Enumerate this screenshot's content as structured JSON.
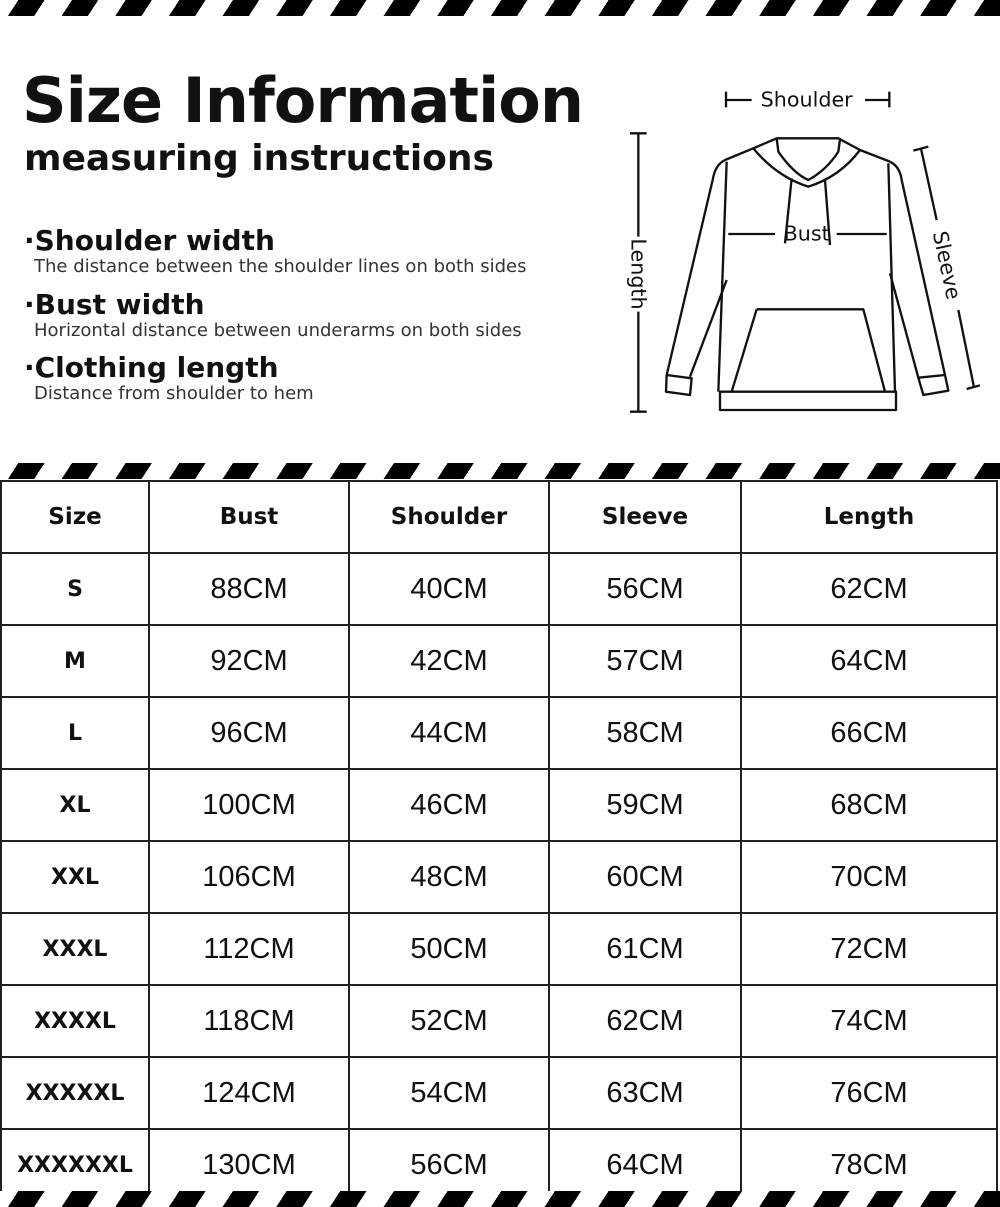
{
  "header": {
    "title": "Size Information",
    "subtitle": "measuring instructions"
  },
  "instructions": [
    {
      "heading": "·Shoulder width",
      "desc": "The distance between the shoulder lines on both sides"
    },
    {
      "heading": "·Bust width",
      "desc": "Horizontal distance between underarms on both sides"
    },
    {
      "heading": "·Clothing length",
      "desc": "Distance from shoulder to hem"
    }
  ],
  "diagram": {
    "shoulder": "Shoulder",
    "bust": "Bust",
    "length": "Length",
    "sleeve": "Sleeve"
  },
  "table": {
    "headers": [
      "Size",
      "Bust",
      "Shoulder",
      "Sleeve",
      "Length"
    ],
    "rows": [
      [
        "S",
        "88CM",
        "40CM",
        "56CM",
        "62CM"
      ],
      [
        "M",
        "92CM",
        "42CM",
        "57CM",
        "64CM"
      ],
      [
        "L",
        "96CM",
        "44CM",
        "58CM",
        "66CM"
      ],
      [
        "XL",
        "100CM",
        "46CM",
        "59CM",
        "68CM"
      ],
      [
        "XXL",
        "106CM",
        "48CM",
        "60CM",
        "70CM"
      ],
      [
        "XXXL",
        "112CM",
        "50CM",
        "61CM",
        "72CM"
      ],
      [
        "XXXXL",
        "118CM",
        "52CM",
        "62CM",
        "74CM"
      ],
      [
        "XXXXXL",
        "124CM",
        "54CM",
        "63CM",
        "76CM"
      ],
      [
        "XXXXXXL",
        "130CM",
        "56CM",
        "64CM",
        "78CM"
      ]
    ]
  }
}
